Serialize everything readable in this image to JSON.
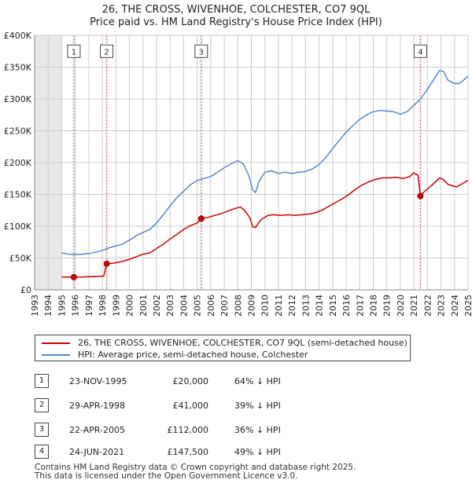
{
  "header": {
    "title_line1": "26, THE CROSS, WIVENHOE, COLCHESTER, CO7 9QL",
    "title_line2": "Price paid vs. HM Land Registry's House Price Index (HPI)"
  },
  "colors": {
    "price_line": "#cc0000",
    "hpi_line": "#5588cc",
    "sale_band": "#eef2fa",
    "grid": "#cccccc",
    "marker_line": "#e06666"
  },
  "chart_data": {
    "type": "line",
    "title": "26, THE CROSS, WIVENHOE, COLCHESTER, CO7 9QL — Price paid vs. HM Land Registry's House Price Index (HPI)",
    "xlabel": "",
    "ylabel": "",
    "xlim": [
      1993,
      2025
    ],
    "ylim": [
      0,
      400000
    ],
    "y_ticks": [
      {
        "value": 0,
        "label": "£0"
      },
      {
        "value": 50000,
        "label": "£50K"
      },
      {
        "value": 100000,
        "label": "£100K"
      },
      {
        "value": 150000,
        "label": "£150K"
      },
      {
        "value": 200000,
        "label": "£200K"
      },
      {
        "value": 250000,
        "label": "£250K"
      },
      {
        "value": 300000,
        "label": "£300K"
      },
      {
        "value": 350000,
        "label": "£350K"
      },
      {
        "value": 400000,
        "label": "£400K"
      }
    ],
    "x_ticks": [
      "1993",
      "1994",
      "1995",
      "1996",
      "1997",
      "1998",
      "1999",
      "2000",
      "2001",
      "2002",
      "2003",
      "2004",
      "2005",
      "2006",
      "2007",
      "2008",
      "2009",
      "2010",
      "2011",
      "2012",
      "2013",
      "2014",
      "2015",
      "2016",
      "2017",
      "2018",
      "2019",
      "2020",
      "2021",
      "2022",
      "2023",
      "2024",
      "2025"
    ],
    "grid": true,
    "series": [
      {
        "name": "26, THE CROSS, WIVENHOE, COLCHESTER, CO7 9QL (semi-detached house)",
        "color": "#cc0000",
        "points": [
          [
            1995.0,
            20000
          ],
          [
            1995.9,
            20000
          ],
          [
            1996.5,
            20300
          ],
          [
            1997.0,
            20700
          ],
          [
            1997.5,
            21000
          ],
          [
            1998.1,
            21500
          ],
          [
            1998.32,
            41000
          ],
          [
            1998.8,
            42000
          ],
          [
            1999.5,
            45000
          ],
          [
            2000.0,
            48000
          ],
          [
            2000.5,
            52000
          ],
          [
            2001.0,
            56000
          ],
          [
            2001.5,
            58000
          ],
          [
            2002.0,
            65000
          ],
          [
            2002.5,
            72000
          ],
          [
            2003.0,
            80000
          ],
          [
            2003.5,
            87000
          ],
          [
            2004.0,
            95000
          ],
          [
            2004.5,
            101000
          ],
          [
            2005.0,
            105000
          ],
          [
            2005.3,
            112000
          ],
          [
            2005.8,
            114000
          ],
          [
            2006.3,
            117000
          ],
          [
            2006.8,
            120000
          ],
          [
            2007.3,
            124000
          ],
          [
            2007.8,
            128000
          ],
          [
            2008.2,
            130000
          ],
          [
            2008.5,
            125000
          ],
          [
            2008.9,
            113000
          ],
          [
            2009.1,
            99000
          ],
          [
            2009.3,
            98000
          ],
          [
            2009.7,
            110000
          ],
          [
            2010.2,
            117000
          ],
          [
            2010.7,
            118000
          ],
          [
            2011.2,
            117000
          ],
          [
            2011.7,
            118000
          ],
          [
            2012.2,
            117000
          ],
          [
            2012.7,
            118000
          ],
          [
            2013.2,
            119000
          ],
          [
            2013.7,
            121000
          ],
          [
            2014.2,
            125000
          ],
          [
            2014.7,
            131000
          ],
          [
            2015.2,
            137000
          ],
          [
            2015.7,
            143000
          ],
          [
            2016.2,
            150000
          ],
          [
            2016.7,
            158000
          ],
          [
            2017.2,
            165000
          ],
          [
            2017.7,
            170000
          ],
          [
            2018.2,
            174000
          ],
          [
            2018.7,
            176000
          ],
          [
            2019.2,
            176000
          ],
          [
            2019.7,
            177000
          ],
          [
            2020.2,
            175000
          ],
          [
            2020.7,
            178000
          ],
          [
            2021.0,
            184000
          ],
          [
            2021.3,
            180000
          ],
          [
            2021.48,
            147500
          ],
          [
            2021.8,
            155000
          ],
          [
            2022.2,
            162000
          ],
          [
            2022.6,
            170000
          ],
          [
            2022.9,
            176000
          ],
          [
            2023.2,
            173000
          ],
          [
            2023.5,
            166000
          ],
          [
            2023.9,
            163000
          ],
          [
            2024.2,
            162000
          ],
          [
            2024.5,
            166000
          ],
          [
            2024.9,
            171000
          ],
          [
            2025.0,
            172000
          ]
        ]
      },
      {
        "name": "HPI: Average price, semi-detached house, Colchester",
        "color": "#5588cc",
        "points": [
          [
            1995.0,
            58000
          ],
          [
            1995.5,
            56000
          ],
          [
            1996.0,
            55500
          ],
          [
            1996.5,
            56000
          ],
          [
            1997.0,
            57000
          ],
          [
            1997.5,
            59000
          ],
          [
            1998.0,
            62000
          ],
          [
            1998.5,
            66000
          ],
          [
            1999.0,
            69000
          ],
          [
            1999.5,
            72000
          ],
          [
            2000.0,
            78000
          ],
          [
            2000.5,
            85000
          ],
          [
            2001.0,
            90000
          ],
          [
            2001.5,
            95000
          ],
          [
            2002.0,
            105000
          ],
          [
            2002.5,
            118000
          ],
          [
            2003.0,
            132000
          ],
          [
            2003.5,
            145000
          ],
          [
            2004.0,
            155000
          ],
          [
            2004.5,
            165000
          ],
          [
            2005.0,
            172000
          ],
          [
            2005.5,
            175000
          ],
          [
            2006.0,
            178000
          ],
          [
            2006.5,
            185000
          ],
          [
            2007.0,
            192000
          ],
          [
            2007.5,
            198000
          ],
          [
            2008.0,
            203000
          ],
          [
            2008.4,
            198000
          ],
          [
            2008.8,
            180000
          ],
          [
            2009.1,
            157000
          ],
          [
            2009.3,
            153000
          ],
          [
            2009.6,
            172000
          ],
          [
            2010.0,
            185000
          ],
          [
            2010.5,
            187000
          ],
          [
            2011.0,
            183000
          ],
          [
            2011.5,
            185000
          ],
          [
            2012.0,
            183000
          ],
          [
            2012.5,
            185000
          ],
          [
            2013.0,
            186000
          ],
          [
            2013.5,
            190000
          ],
          [
            2014.0,
            197000
          ],
          [
            2014.5,
            208000
          ],
          [
            2015.0,
            222000
          ],
          [
            2015.5,
            235000
          ],
          [
            2016.0,
            248000
          ],
          [
            2016.5,
            258000
          ],
          [
            2017.0,
            268000
          ],
          [
            2017.5,
            275000
          ],
          [
            2018.0,
            280000
          ],
          [
            2018.5,
            282000
          ],
          [
            2019.0,
            281000
          ],
          [
            2019.5,
            280000
          ],
          [
            2020.0,
            276000
          ],
          [
            2020.5,
            280000
          ],
          [
            2021.0,
            290000
          ],
          [
            2021.5,
            300000
          ],
          [
            2022.0,
            315000
          ],
          [
            2022.5,
            332000
          ],
          [
            2022.9,
            345000
          ],
          [
            2023.2,
            343000
          ],
          [
            2023.5,
            330000
          ],
          [
            2023.9,
            325000
          ],
          [
            2024.3,
            324000
          ],
          [
            2024.7,
            330000
          ],
          [
            2025.0,
            336000
          ]
        ]
      }
    ],
    "sales": [
      {
        "id": "1",
        "x": 1995.9,
        "price": 20000
      },
      {
        "id": "2",
        "x": 1998.32,
        "price": 41000
      },
      {
        "id": "3",
        "x": 2005.3,
        "price": 112000
      },
      {
        "id": "4",
        "x": 2021.48,
        "price": 147500
      }
    ],
    "shaded_ranges": [
      [
        1993,
        1995.0
      ],
      [
        2025.0,
        2025.0
      ]
    ],
    "marker_label_value": 375000
  },
  "legend": {
    "items": [
      {
        "label": "26, THE CROSS, WIVENHOE, COLCHESTER, CO7 9QL (semi-detached house)",
        "color": "#cc0000"
      },
      {
        "label": "HPI: Average price, semi-detached house, Colchester",
        "color": "#5588cc"
      }
    ]
  },
  "table": {
    "rows": [
      {
        "num": "1",
        "date": "23-NOV-1995",
        "price": "£20,000",
        "hpi": "64% ↓ HPI"
      },
      {
        "num": "2",
        "date": "29-APR-1998",
        "price": "£41,000",
        "hpi": "39% ↓ HPI"
      },
      {
        "num": "3",
        "date": "22-APR-2005",
        "price": "£112,000",
        "hpi": "36% ↓ HPI"
      },
      {
        "num": "4",
        "date": "24-JUN-2021",
        "price": "£147,500",
        "hpi": "49% ↓ HPI"
      }
    ]
  },
  "footer": {
    "line1": "Contains HM Land Registry data © Crown copyright and database right 2025.",
    "line2": "This data is licensed under the Open Government Licence v3.0."
  }
}
